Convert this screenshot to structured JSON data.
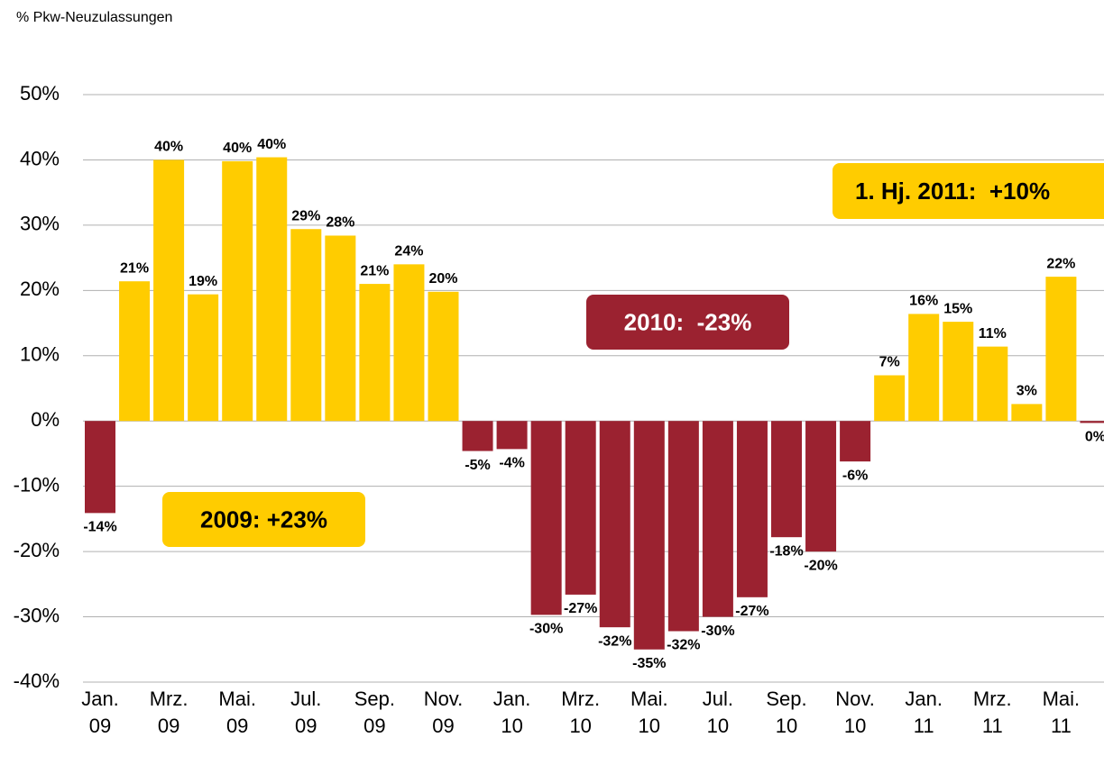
{
  "chart_data": {
    "type": "bar",
    "y_axis_label": "% Pkw-Neuzulassungen",
    "categories": [
      "Jan.\n09",
      null,
      "Mrz.\n09",
      null,
      "Mai.\n09",
      null,
      "Jul.\n09",
      null,
      "Sep.\n09",
      null,
      "Nov.\n09",
      null,
      "Jan.\n10",
      null,
      "Mrz.\n10",
      null,
      "Mai.\n10",
      null,
      "Jul.\n10",
      null,
      "Sep.\n10",
      null,
      "Nov.\n10",
      null,
      "Jan.\n11",
      null,
      "Mrz.\n11",
      null,
      "Mai.\n11",
      null
    ],
    "values": [
      -14.1,
      21.4,
      40,
      19.4,
      39.8,
      40.4,
      29.4,
      28.4,
      21,
      24,
      19.8,
      -4.6,
      -4.3,
      -29.7,
      -26.6,
      -31.6,
      -35,
      -32.2,
      -30,
      -27,
      -17.8,
      -20,
      -6.2,
      7,
      16.4,
      15.2,
      11.4,
      2.6,
      22.1,
      -0.3
    ],
    "value_labels": [
      "-14%",
      "21%",
      "40%",
      "19%",
      "40%",
      "40%",
      "29%",
      "28%",
      "21%",
      "24%",
      "20%",
      "-5%",
      "-4%",
      "-30%",
      "-27%",
      "-32%",
      "-35%",
      "-32%",
      "-30%",
      "-27%",
      "-18%",
      "-20%",
      "-6%",
      "7%",
      "16%",
      "15%",
      "11%",
      "3%",
      "22%",
      "0%"
    ],
    "positive_color": "#ffcc00",
    "negative_color": "#9b2230",
    "ylim": [
      -40,
      50
    ],
    "yticks": [
      {
        "value": -40,
        "label": "-40%"
      },
      {
        "value": -30,
        "label": "-30%"
      },
      {
        "value": -20,
        "label": "-20%"
      },
      {
        "value": -10,
        "label": "-10%"
      },
      {
        "value": 0,
        "label": "0%"
      },
      {
        "value": 10,
        "label": "10%"
      },
      {
        "value": 20,
        "label": "20%"
      },
      {
        "value": 30,
        "label": "30%"
      },
      {
        "value": 40,
        "label": "40%"
      },
      {
        "value": 50,
        "label": "50%"
      }
    ],
    "grid": true,
    "annotations": [
      {
        "text": "2009: +23%",
        "color": "#ffcc00",
        "text_color": "#000000"
      },
      {
        "text": "2010:  -23%",
        "color": "#9b2230",
        "text_color": "#ffffff"
      },
      {
        "text": "1. Hj. 2011:  +10%",
        "color": "#ffcc00",
        "text_color": "#000000"
      }
    ]
  }
}
